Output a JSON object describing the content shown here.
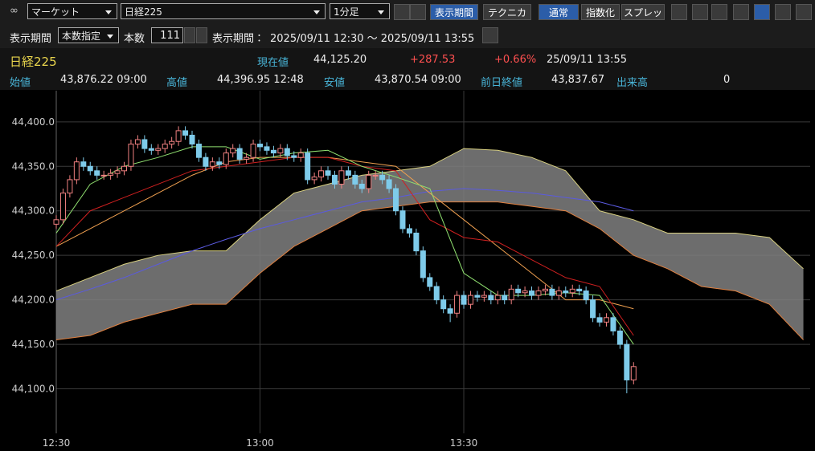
{
  "toolbar": {
    "market": "マーケット",
    "symbol": "日経225",
    "interval": "1分足",
    "buttons": [
      "表示期間",
      "テクニカル",
      "通常",
      "指数化",
      "スプレッド"
    ]
  },
  "period_bar": {
    "label": "表示期間",
    "mode": "本数指定",
    "count_label": "本数",
    "count": 111,
    "range_label": "表示期間：",
    "range": "2025/09/11 12:30 〜 2025/09/11 13:55"
  },
  "quote": {
    "symbol": "日経225",
    "current_label": "現在値",
    "current": "44,125.20",
    "change": "+287.53",
    "change_pct": "+0.66%",
    "time": "25/09/11  13:55",
    "stats": [
      {
        "label": "始値",
        "value": "43,876.22  09:00"
      },
      {
        "label": "高値",
        "value": "44,396.95  12:48"
      },
      {
        "label": "安値",
        "value": "43,870.54  09:00"
      },
      {
        "label": "前日終値",
        "value": "43,837.67"
      },
      {
        "label": "出来高",
        "value": "0"
      }
    ]
  },
  "chart_data": {
    "type": "candlestick",
    "x": [
      "12:30",
      "12:31",
      "12:32",
      "12:33",
      "12:34",
      "12:35",
      "12:36",
      "12:37",
      "12:38",
      "12:39",
      "12:40",
      "12:41",
      "12:42",
      "12:43",
      "12:44",
      "12:45",
      "12:46",
      "12:47",
      "12:48",
      "12:49",
      "12:50",
      "12:51",
      "12:52",
      "12:53",
      "12:54",
      "12:55",
      "12:56",
      "12:57",
      "12:58",
      "12:59",
      "13:00",
      "13:01",
      "13:02",
      "13:03",
      "13:04",
      "13:05",
      "13:06",
      "13:07",
      "13:08",
      "13:09",
      "13:10",
      "13:11",
      "13:12",
      "13:13",
      "13:14",
      "13:15",
      "13:16",
      "13:17",
      "13:18",
      "13:19",
      "13:20",
      "13:21",
      "13:22",
      "13:23",
      "13:24",
      "13:25",
      "13:26",
      "13:27",
      "13:28",
      "13:29",
      "13:30",
      "13:31",
      "13:32",
      "13:33",
      "13:34",
      "13:35",
      "13:36",
      "13:37",
      "13:38",
      "13:39",
      "13:40",
      "13:41",
      "13:42",
      "13:43",
      "13:44",
      "13:45",
      "13:46",
      "13:47",
      "13:48",
      "13:49",
      "13:50",
      "13:51",
      "13:52",
      "13:53",
      "13:54",
      "13:55"
    ],
    "open": [
      44285,
      44290,
      44320,
      44335,
      44355,
      44350,
      44345,
      44340,
      44340,
      44342,
      44345,
      44350,
      44375,
      44380,
      44370,
      44368,
      44370,
      44375,
      44378,
      44390,
      44385,
      44375,
      44360,
      44350,
      44355,
      44352,
      44365,
      44370,
      44358,
      44360,
      44375,
      44372,
      44368,
      44365,
      44370,
      44362,
      44360,
      44365,
      44335,
      44338,
      44345,
      44340,
      44330,
      44345,
      44340,
      44330,
      44325,
      44340,
      44340,
      44335,
      44325,
      44300,
      44280,
      44275,
      44255,
      44225,
      44215,
      44200,
      44190,
      44185,
      44205,
      44195,
      44205,
      44203,
      44205,
      44200,
      44205,
      44200,
      44212,
      44208,
      44210,
      44205,
      44210,
      44212,
      44205,
      44210,
      44208,
      44212,
      44210,
      44200,
      44180,
      44175,
      44180,
      44165,
      44150,
      44110
    ],
    "high": [
      44295,
      44325,
      44340,
      44360,
      44360,
      44355,
      44350,
      44345,
      44347,
      44350,
      44355,
      44380,
      44385,
      44385,
      44375,
      44375,
      44380,
      44383,
      44395,
      44395,
      44390,
      44380,
      44365,
      44360,
      44360,
      44370,
      44375,
      44375,
      44365,
      44380,
      44380,
      44377,
      44373,
      44375,
      44375,
      44367,
      44370,
      44370,
      44343,
      44350,
      44350,
      44345,
      44350,
      44350,
      44345,
      44335,
      44345,
      44345,
      44345,
      44340,
      44330,
      44305,
      44285,
      44280,
      44260,
      44230,
      44220,
      44205,
      44195,
      44210,
      44210,
      44210,
      44210,
      44210,
      44210,
      44210,
      44210,
      44217,
      44217,
      44215,
      44215,
      44215,
      44217,
      44217,
      44215,
      44215,
      44217,
      44217,
      44215,
      44205,
      44185,
      44185,
      44185,
      44170,
      44155,
      44130
    ],
    "low": [
      44280,
      44285,
      44315,
      44330,
      44345,
      44340,
      44335,
      44335,
      44335,
      44337,
      44340,
      44345,
      44370,
      44365,
      44363,
      44363,
      44365,
      44370,
      44373,
      44380,
      44370,
      44355,
      44345,
      44345,
      44347,
      44347,
      44360,
      44353,
      44353,
      44355,
      44367,
      44363,
      44360,
      44360,
      44357,
      44355,
      44355,
      44330,
      44330,
      44333,
      44335,
      44325,
      44325,
      44335,
      44325,
      44320,
      44320,
      44335,
      44330,
      44320,
      44295,
      44275,
      44270,
      44250,
      44220,
      44210,
      44195,
      44185,
      44175,
      44180,
      44190,
      44190,
      44198,
      44198,
      44195,
      44195,
      44195,
      44195,
      44203,
      44203,
      44200,
      44200,
      44205,
      44200,
      44200,
      44203,
      44203,
      44205,
      44195,
      44175,
      44170,
      44170,
      44160,
      44145,
      44095,
      44105
    ],
    "close": [
      44290,
      44320,
      44335,
      44355,
      44350,
      44345,
      44340,
      44340,
      44342,
      44345,
      44350,
      44375,
      44380,
      44370,
      44368,
      44370,
      44375,
      44378,
      44390,
      44385,
      44375,
      44360,
      44350,
      44355,
      44352,
      44365,
      44370,
      44358,
      44360,
      44375,
      44372,
      44368,
      44365,
      44370,
      44362,
      44360,
      44365,
      44335,
      44338,
      44345,
      44340,
      44330,
      44345,
      44340,
      44330,
      44325,
      44340,
      44340,
      44335,
      44325,
      44300,
      44280,
      44275,
      44255,
      44225,
      44215,
      44200,
      44190,
      44185,
      44205,
      44195,
      44205,
      44203,
      44205,
      44200,
      44205,
      44200,
      44212,
      44208,
      44210,
      44205,
      44210,
      44212,
      44205,
      44210,
      44208,
      44212,
      44210,
      44200,
      44180,
      44175,
      44180,
      44165,
      44150,
      44110,
      44125
    ],
    "up_color": "#f08080",
    "down_color": "#7ecbea",
    "series": [
      {
        "color": "#5a5ae0",
        "x": [
          "12:30",
          "12:35",
          "12:40",
          "12:45",
          "12:50",
          "12:55",
          "13:00",
          "13:05",
          "13:10",
          "13:15",
          "13:20",
          "13:25",
          "13:30",
          "13:35",
          "13:40",
          "13:45",
          "13:50",
          "13:55"
        ],
        "values": [
          44200,
          44212,
          44225,
          44240,
          44255,
          44268,
          44280,
          44290,
          44300,
          44310,
          44315,
          44322,
          44325,
          44323,
          44320,
          44315,
          44310,
          44300
        ]
      },
      {
        "color": "#f0a050",
        "x": [
          "12:30",
          "12:35",
          "12:40",
          "12:45",
          "12:50",
          "12:55",
          "13:00",
          "13:05",
          "13:10",
          "13:15",
          "13:20",
          "13:25",
          "13:30",
          "13:35",
          "13:40",
          "13:45",
          "13:50",
          "13:55"
        ],
        "values": [
          44260,
          44280,
          44300,
          44320,
          44340,
          44355,
          44360,
          44360,
          44360,
          44355,
          44350,
          44320,
          44290,
          44260,
          44230,
          44200,
          44200,
          44190
        ]
      },
      {
        "color": "#d02020",
        "x": [
          "12:30",
          "12:35",
          "12:40",
          "12:45",
          "12:50",
          "12:55",
          "13:00",
          "13:05",
          "13:10",
          "13:15",
          "13:20",
          "13:25",
          "13:30",
          "13:35",
          "13:40",
          "13:45",
          "13:50",
          "13:55"
        ],
        "values": [
          44260,
          44300,
          44315,
          44330,
          44345,
          44350,
          44355,
          44360,
          44360,
          44350,
          44345,
          44290,
          44270,
          44265,
          44245,
          44225,
          44215,
          44160
        ]
      },
      {
        "color": "#90e070",
        "x": [
          "12:30",
          "12:35",
          "12:40",
          "12:45",
          "12:50",
          "12:55",
          "13:00",
          "13:05",
          "13:10",
          "13:15",
          "13:20",
          "13:25",
          "13:30",
          "13:35",
          "13:40",
          "13:45",
          "13:50",
          "13:55"
        ],
        "values": [
          44275,
          44330,
          44350,
          44360,
          44372,
          44372,
          44358,
          44365,
          44368,
          44350,
          44338,
          44325,
          44230,
          44205,
          44205,
          44208,
          44205,
          44150
        ]
      }
    ],
    "cloud": {
      "color": "#808080",
      "upper_color": "#d8d080",
      "lower_color": "#e08040",
      "x": [
        "12:30",
        "12:35",
        "12:40",
        "12:45",
        "12:50",
        "12:55",
        "13:00",
        "13:05",
        "13:10",
        "13:15",
        "13:20",
        "13:25",
        "13:30",
        "13:35",
        "13:40",
        "13:45",
        "13:50",
        "13:55",
        "14:00",
        "14:05",
        "14:10",
        "14:15",
        "14:20"
      ],
      "upper": [
        44210,
        44225,
        44240,
        44250,
        44255,
        44255,
        44290,
        44320,
        44330,
        44340,
        44345,
        44350,
        44370,
        44368,
        44360,
        44345,
        44300,
        44290,
        44275,
        44275,
        44275,
        44270,
        44235
      ],
      "lower": [
        44155,
        44160,
        44175,
        44185,
        44195,
        44195,
        44230,
        44260,
        44280,
        44300,
        44305,
        44310,
        44310,
        44310,
        44305,
        44300,
        44280,
        44250,
        44235,
        44215,
        44210,
        44195,
        44155
      ]
    },
    "xlim": [
      "12:30",
      "14:21"
    ],
    "xticks": [
      "12:30",
      "13:00",
      "13:30"
    ],
    "ylim": [
      44050,
      44435
    ],
    "yticks": [
      {
        "value": 44100,
        "label": "44,100.0"
      },
      {
        "value": 44150,
        "label": "44,150.0"
      },
      {
        "value": 44200,
        "label": "44,200.0"
      },
      {
        "value": 44250,
        "label": "44,250.0"
      },
      {
        "value": 44300,
        "label": "44,300.0"
      },
      {
        "value": 44350,
        "label": "44,350.0"
      },
      {
        "value": 44400,
        "label": "44,400.0"
      }
    ],
    "grid": true
  }
}
